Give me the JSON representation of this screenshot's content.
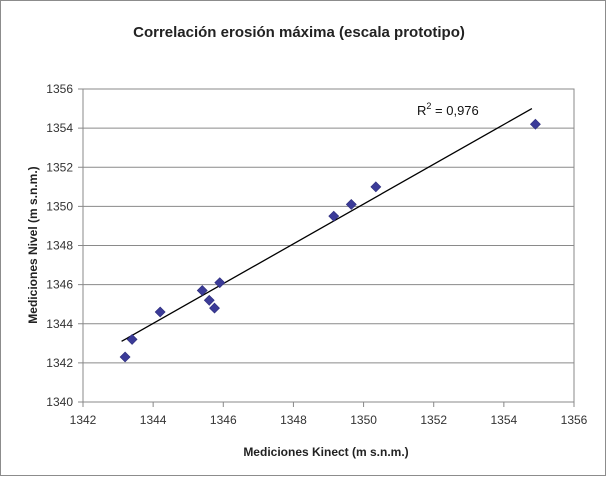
{
  "chart_data": {
    "type": "scatter",
    "title": "Correlación erosión máxima (escala prototipo)",
    "xlabel": "Mediciones Kinect (m s.n.m.)",
    "ylabel": "Mediciones Nivel (m s.n.m.)",
    "xlim": [
      1342,
      1356
    ],
    "ylim": [
      1340,
      1356
    ],
    "xticks": [
      1342,
      1344,
      1346,
      1348,
      1350,
      1352,
      1354,
      1356
    ],
    "yticks": [
      1340,
      1342,
      1344,
      1346,
      1348,
      1350,
      1352,
      1354,
      1356
    ],
    "grid": "horizontal",
    "legend": "none",
    "marker_color": "#3b3b98",
    "series": [
      {
        "points": [
          {
            "x": 1343.2,
            "y": 1342.3
          },
          {
            "x": 1343.4,
            "y": 1343.2
          },
          {
            "x": 1344.2,
            "y": 1344.6
          },
          {
            "x": 1345.4,
            "y": 1345.7
          },
          {
            "x": 1345.6,
            "y": 1345.2
          },
          {
            "x": 1345.75,
            "y": 1344.8
          },
          {
            "x": 1345.9,
            "y": 1346.1
          },
          {
            "x": 1349.15,
            "y": 1349.5
          },
          {
            "x": 1349.65,
            "y": 1350.1
          },
          {
            "x": 1350.35,
            "y": 1351.0
          },
          {
            "x": 1354.9,
            "y": 1354.2
          }
        ]
      }
    ],
    "trendline": {
      "x": [
        1343.1,
        1354.8
      ],
      "y": [
        1343.1,
        1355.0
      ]
    },
    "annotation": {
      "label": "R",
      "superscript": "2",
      "value": " = 0,976"
    }
  }
}
